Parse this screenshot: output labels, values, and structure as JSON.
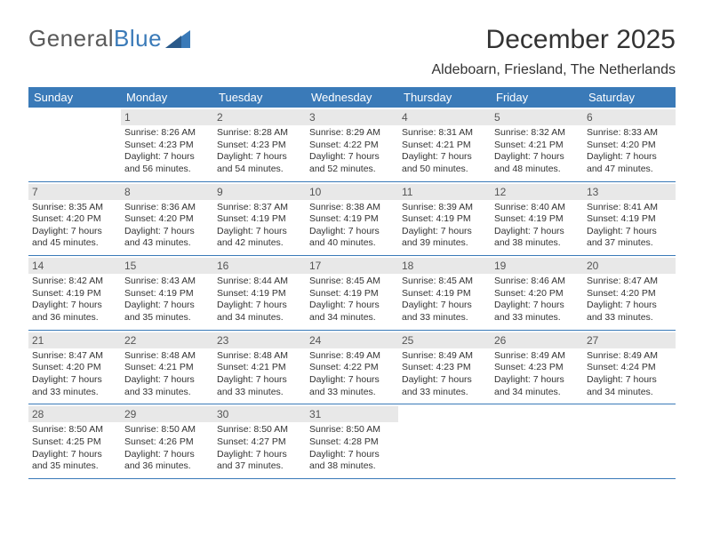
{
  "logo": {
    "part1": "General",
    "part2": "Blue"
  },
  "header": {
    "month_title": "December 2025",
    "location": "Aldeboarn, Friesland, The Netherlands"
  },
  "colors": {
    "header_bg": "#3a7ab8",
    "daybar_bg": "#e8e8e8",
    "text": "#333333",
    "header_text": "#ffffff",
    "page_bg": "#ffffff"
  },
  "weekdays": [
    "Sunday",
    "Monday",
    "Tuesday",
    "Wednesday",
    "Thursday",
    "Friday",
    "Saturday"
  ],
  "weeks": [
    [
      {
        "num": "",
        "sunrise": "",
        "sunset": "",
        "daylight": ""
      },
      {
        "num": "1",
        "sunrise": "Sunrise: 8:26 AM",
        "sunset": "Sunset: 4:23 PM",
        "daylight": "Daylight: 7 hours and 56 minutes."
      },
      {
        "num": "2",
        "sunrise": "Sunrise: 8:28 AM",
        "sunset": "Sunset: 4:23 PM",
        "daylight": "Daylight: 7 hours and 54 minutes."
      },
      {
        "num": "3",
        "sunrise": "Sunrise: 8:29 AM",
        "sunset": "Sunset: 4:22 PM",
        "daylight": "Daylight: 7 hours and 52 minutes."
      },
      {
        "num": "4",
        "sunrise": "Sunrise: 8:31 AM",
        "sunset": "Sunset: 4:21 PM",
        "daylight": "Daylight: 7 hours and 50 minutes."
      },
      {
        "num": "5",
        "sunrise": "Sunrise: 8:32 AM",
        "sunset": "Sunset: 4:21 PM",
        "daylight": "Daylight: 7 hours and 48 minutes."
      },
      {
        "num": "6",
        "sunrise": "Sunrise: 8:33 AM",
        "sunset": "Sunset: 4:20 PM",
        "daylight": "Daylight: 7 hours and 47 minutes."
      }
    ],
    [
      {
        "num": "7",
        "sunrise": "Sunrise: 8:35 AM",
        "sunset": "Sunset: 4:20 PM",
        "daylight": "Daylight: 7 hours and 45 minutes."
      },
      {
        "num": "8",
        "sunrise": "Sunrise: 8:36 AM",
        "sunset": "Sunset: 4:20 PM",
        "daylight": "Daylight: 7 hours and 43 minutes."
      },
      {
        "num": "9",
        "sunrise": "Sunrise: 8:37 AM",
        "sunset": "Sunset: 4:19 PM",
        "daylight": "Daylight: 7 hours and 42 minutes."
      },
      {
        "num": "10",
        "sunrise": "Sunrise: 8:38 AM",
        "sunset": "Sunset: 4:19 PM",
        "daylight": "Daylight: 7 hours and 40 minutes."
      },
      {
        "num": "11",
        "sunrise": "Sunrise: 8:39 AM",
        "sunset": "Sunset: 4:19 PM",
        "daylight": "Daylight: 7 hours and 39 minutes."
      },
      {
        "num": "12",
        "sunrise": "Sunrise: 8:40 AM",
        "sunset": "Sunset: 4:19 PM",
        "daylight": "Daylight: 7 hours and 38 minutes."
      },
      {
        "num": "13",
        "sunrise": "Sunrise: 8:41 AM",
        "sunset": "Sunset: 4:19 PM",
        "daylight": "Daylight: 7 hours and 37 minutes."
      }
    ],
    [
      {
        "num": "14",
        "sunrise": "Sunrise: 8:42 AM",
        "sunset": "Sunset: 4:19 PM",
        "daylight": "Daylight: 7 hours and 36 minutes."
      },
      {
        "num": "15",
        "sunrise": "Sunrise: 8:43 AM",
        "sunset": "Sunset: 4:19 PM",
        "daylight": "Daylight: 7 hours and 35 minutes."
      },
      {
        "num": "16",
        "sunrise": "Sunrise: 8:44 AM",
        "sunset": "Sunset: 4:19 PM",
        "daylight": "Daylight: 7 hours and 34 minutes."
      },
      {
        "num": "17",
        "sunrise": "Sunrise: 8:45 AM",
        "sunset": "Sunset: 4:19 PM",
        "daylight": "Daylight: 7 hours and 34 minutes."
      },
      {
        "num": "18",
        "sunrise": "Sunrise: 8:45 AM",
        "sunset": "Sunset: 4:19 PM",
        "daylight": "Daylight: 7 hours and 33 minutes."
      },
      {
        "num": "19",
        "sunrise": "Sunrise: 8:46 AM",
        "sunset": "Sunset: 4:20 PM",
        "daylight": "Daylight: 7 hours and 33 minutes."
      },
      {
        "num": "20",
        "sunrise": "Sunrise: 8:47 AM",
        "sunset": "Sunset: 4:20 PM",
        "daylight": "Daylight: 7 hours and 33 minutes."
      }
    ],
    [
      {
        "num": "21",
        "sunrise": "Sunrise: 8:47 AM",
        "sunset": "Sunset: 4:20 PM",
        "daylight": "Daylight: 7 hours and 33 minutes."
      },
      {
        "num": "22",
        "sunrise": "Sunrise: 8:48 AM",
        "sunset": "Sunset: 4:21 PM",
        "daylight": "Daylight: 7 hours and 33 minutes."
      },
      {
        "num": "23",
        "sunrise": "Sunrise: 8:48 AM",
        "sunset": "Sunset: 4:21 PM",
        "daylight": "Daylight: 7 hours and 33 minutes."
      },
      {
        "num": "24",
        "sunrise": "Sunrise: 8:49 AM",
        "sunset": "Sunset: 4:22 PM",
        "daylight": "Daylight: 7 hours and 33 minutes."
      },
      {
        "num": "25",
        "sunrise": "Sunrise: 8:49 AM",
        "sunset": "Sunset: 4:23 PM",
        "daylight": "Daylight: 7 hours and 33 minutes."
      },
      {
        "num": "26",
        "sunrise": "Sunrise: 8:49 AM",
        "sunset": "Sunset: 4:23 PM",
        "daylight": "Daylight: 7 hours and 34 minutes."
      },
      {
        "num": "27",
        "sunrise": "Sunrise: 8:49 AM",
        "sunset": "Sunset: 4:24 PM",
        "daylight": "Daylight: 7 hours and 34 minutes."
      }
    ],
    [
      {
        "num": "28",
        "sunrise": "Sunrise: 8:50 AM",
        "sunset": "Sunset: 4:25 PM",
        "daylight": "Daylight: 7 hours and 35 minutes."
      },
      {
        "num": "29",
        "sunrise": "Sunrise: 8:50 AM",
        "sunset": "Sunset: 4:26 PM",
        "daylight": "Daylight: 7 hours and 36 minutes."
      },
      {
        "num": "30",
        "sunrise": "Sunrise: 8:50 AM",
        "sunset": "Sunset: 4:27 PM",
        "daylight": "Daylight: 7 hours and 37 minutes."
      },
      {
        "num": "31",
        "sunrise": "Sunrise: 8:50 AM",
        "sunset": "Sunset: 4:28 PM",
        "daylight": "Daylight: 7 hours and 38 minutes."
      },
      {
        "num": "",
        "sunrise": "",
        "sunset": "",
        "daylight": ""
      },
      {
        "num": "",
        "sunrise": "",
        "sunset": "",
        "daylight": ""
      },
      {
        "num": "",
        "sunrise": "",
        "sunset": "",
        "daylight": ""
      }
    ]
  ]
}
